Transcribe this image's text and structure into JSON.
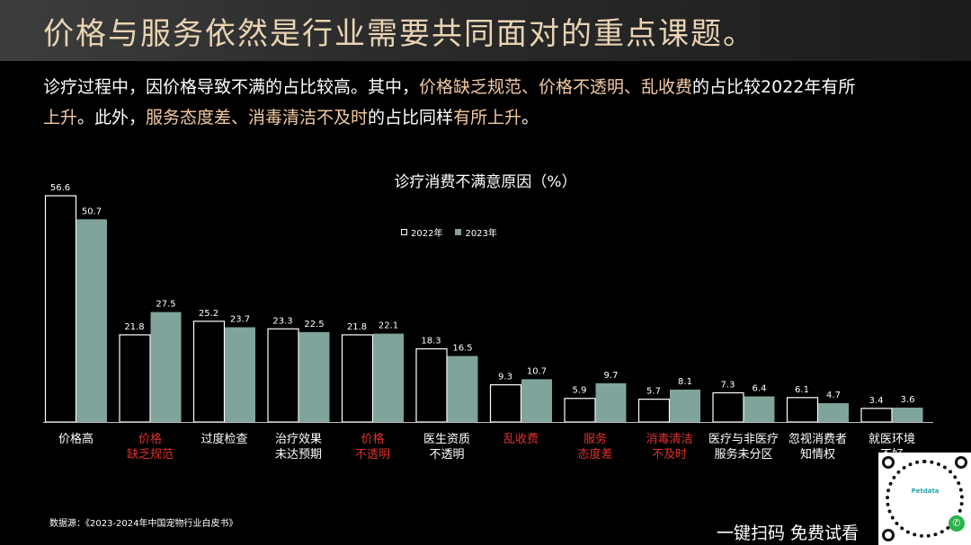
{
  "header": {
    "title": "价格与服务依然是行业需要共同面对的重点课题。"
  },
  "intro": {
    "line1_a": "诊疗过程中，因价格导致不满的占比较高。其中，",
    "line1_hl": "价格缺乏规范、价格不透明、乱收费",
    "line1_b": "的占比较2022年有所",
    "line2_a": "上升",
    "line2_b": "。此外，",
    "line2_hl": "服务态度差、消毒清洁不及时",
    "line2_c": "的占比同样",
    "line2_hl2": "有所上升",
    "line2_d": "。"
  },
  "legend": {
    "y2022": "2022年",
    "y2023": "2023年"
  },
  "footer": {
    "source": "数据源：《2023-2024年中国宠物行业白皮书》",
    "cta": "一键扫码 免费试看",
    "qr_brand": "Petdata"
  },
  "colors": {
    "accent_text": "#f3c9a1",
    "title_text": "#e9d3b3",
    "series_2022_fill": "#000000",
    "series_2022_stroke": "#ffffff",
    "series_2023_fill": "#7fa49c",
    "highlight_label": "#e0322f"
  },
  "chart_data": {
    "type": "bar",
    "title": "诊疗消费不满意原因（%）",
    "categories": [
      {
        "lines": [
          "价格高"
        ],
        "highlight": false
      },
      {
        "lines": [
          "价格",
          "缺乏规范"
        ],
        "highlight": true
      },
      {
        "lines": [
          "过度检查"
        ],
        "highlight": false
      },
      {
        "lines": [
          "治疗效果",
          "未达预期"
        ],
        "highlight": false
      },
      {
        "lines": [
          "价格",
          "不透明"
        ],
        "highlight": true
      },
      {
        "lines": [
          "医生资质",
          "不透明"
        ],
        "highlight": false
      },
      {
        "lines": [
          "乱收费"
        ],
        "highlight": true
      },
      {
        "lines": [
          "服务",
          "态度差"
        ],
        "highlight": true
      },
      {
        "lines": [
          "消毒清洁",
          "不及时"
        ],
        "highlight": true
      },
      {
        "lines": [
          "医疗与非医疗",
          "服务未分区"
        ],
        "highlight": false
      },
      {
        "lines": [
          "忽视消费者",
          "知情权"
        ],
        "highlight": false
      },
      {
        "lines": [
          "就医环境",
          "不好"
        ],
        "highlight": false
      }
    ],
    "series": [
      {
        "name": "2022年",
        "values": [
          56.6,
          21.8,
          25.2,
          23.3,
          21.8,
          18.3,
          9.3,
          5.9,
          5.7,
          7.3,
          6.1,
          3.4
        ]
      },
      {
        "name": "2023年",
        "values": [
          50.7,
          27.5,
          23.7,
          22.5,
          22.1,
          16.5,
          10.7,
          9.7,
          8.1,
          6.4,
          4.7,
          3.6
        ]
      }
    ],
    "ylim": [
      0,
      56.6
    ],
    "grid": false,
    "legend_position": "top-center"
  }
}
